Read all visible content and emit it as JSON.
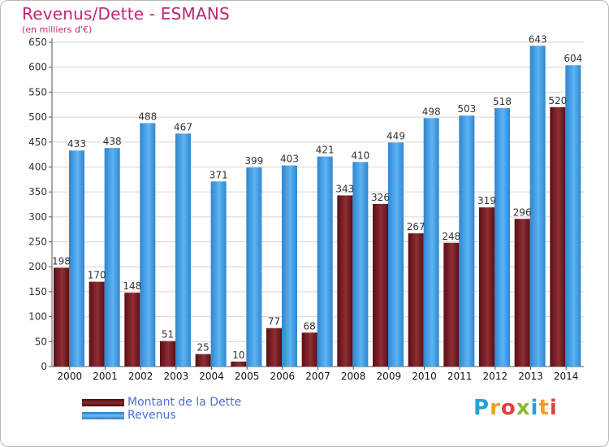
{
  "title": "Revenus/Dette - ESMANS",
  "subtitle": "(en milliers d'€)",
  "logo": {
    "text": "Proxiti",
    "letters": [
      {
        "ch": "P",
        "color": "#2aa0d8"
      },
      {
        "ch": "r",
        "color": "#f0a020"
      },
      {
        "ch": "o",
        "color": "#e04040"
      },
      {
        "ch": "x",
        "color": "#8ab830"
      },
      {
        "ch": "i",
        "color": "#2aa0d8"
      },
      {
        "ch": "t",
        "color": "#f0a020"
      },
      {
        "ch": "i",
        "color": "#e04040"
      }
    ]
  },
  "chart_data": {
    "type": "bar",
    "title": "Revenus/Dette - ESMANS",
    "subtitle": "(en milliers d'€)",
    "categories": [
      "2000",
      "2001",
      "2002",
      "2003",
      "2004",
      "2005",
      "2006",
      "2007",
      "2008",
      "2009",
      "2010",
      "2011",
      "2012",
      "2013",
      "2014"
    ],
    "series": [
      {
        "name": "Montant de la Dette",
        "color": "#7a1a22",
        "values": [
          198,
          170,
          148,
          51,
          25,
          10,
          77,
          68,
          343,
          326,
          267,
          248,
          319,
          296,
          520
        ]
      },
      {
        "name": "Revenus",
        "color": "#4aa3e8",
        "values": [
          433,
          438,
          488,
          467,
          371,
          399,
          403,
          421,
          410,
          449,
          498,
          503,
          518,
          643,
          604
        ]
      }
    ],
    "ylim": [
      0,
      650
    ],
    "yticks": [
      0,
      50,
      100,
      150,
      200,
      250,
      300,
      350,
      400,
      450,
      500,
      550,
      600,
      650
    ],
    "grid": true,
    "legend": "bottom-left"
  }
}
